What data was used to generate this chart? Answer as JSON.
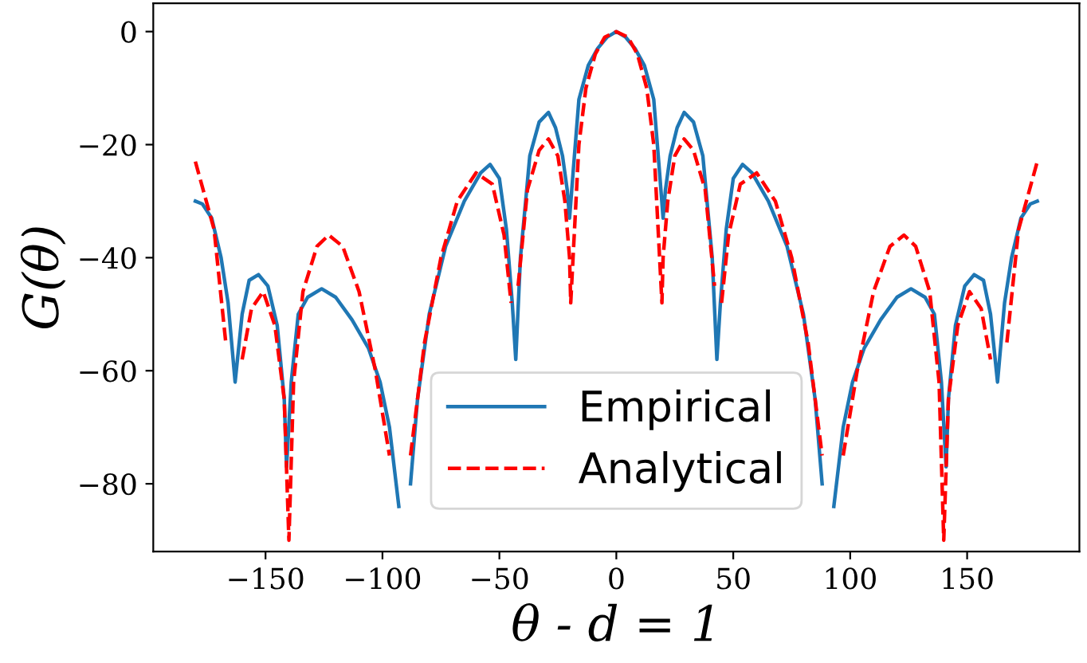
{
  "chart_data": {
    "type": "line",
    "xlabel": "θ - d = 1",
    "ylabel": "G(θ)",
    "xlim": [
      -198,
      198
    ],
    "ylim": [
      -92,
      5
    ],
    "xticks": [
      {
        "value": -150,
        "label": "−150"
      },
      {
        "value": -100,
        "label": "−100"
      },
      {
        "value": -50,
        "label": "−50"
      },
      0,
      50,
      100,
      150
    ],
    "yticks": [
      {
        "value": -80,
        "label": "−80"
      },
      {
        "value": -60,
        "label": "−60"
      },
      {
        "value": -40,
        "label": "−40"
      },
      {
        "value": -20,
        "label": "−20"
      },
      0
    ],
    "grid": false,
    "legend": "bottom",
    "series": [
      {
        "name": "Empirical",
        "color": "#1f77b4",
        "line_style": "solid",
        "x": [
          -180,
          -177,
          -173,
          -169,
          -166,
          -163,
          -160,
          -157,
          -153,
          -149,
          -145,
          -142,
          -141,
          -139,
          -136,
          -132,
          -126,
          -120,
          -113,
          -106,
          -101,
          -97,
          -93,
          -91.5,
          -90,
          -88,
          -85,
          -80,
          -73,
          -65,
          -58,
          -54,
          -50,
          -47,
          -44.5,
          -43,
          -41,
          -37,
          -33,
          -29,
          -26,
          -23,
          -21,
          -20,
          -18.5,
          -16,
          -12,
          -8,
          -4,
          0,
          4,
          8,
          12,
          16,
          18.5,
          20,
          21,
          23,
          26,
          29,
          33,
          37,
          41,
          43,
          44.5,
          47,
          50,
          54,
          58,
          65,
          73,
          80,
          85,
          88,
          90,
          91.5,
          93,
          97,
          101,
          106,
          113,
          120,
          126,
          132,
          136,
          139,
          141,
          142,
          145,
          149,
          153,
          157,
          160,
          163,
          166,
          169,
          173,
          177,
          180
        ],
        "values": [
          -30,
          -30.5,
          -33,
          -40,
          -48,
          -62,
          -50,
          -44,
          -43,
          -45,
          -52,
          -65,
          -77,
          -62,
          -50,
          -47,
          -45.5,
          -47,
          -51,
          -56,
          -62,
          -70,
          -84,
          null,
          null,
          -80,
          -65,
          -50,
          -38,
          -30,
          -25,
          -23.5,
          -26,
          -35,
          -48,
          -58,
          -40,
          -22,
          -16,
          -14.3,
          -17,
          -22,
          -28,
          -33,
          -25,
          -12,
          -6,
          -3,
          -1,
          0,
          -1,
          -3,
          -6,
          -12,
          -25,
          -33,
          -28,
          -22,
          -17,
          -14.3,
          -16,
          -22,
          -40,
          -58,
          -48,
          -35,
          -26,
          -23.5,
          -25,
          -30,
          -38,
          -50,
          -65,
          -80,
          null,
          null,
          -84,
          -70,
          -62,
          -56,
          -51,
          -47,
          -45.5,
          -47,
          -50,
          -62,
          -77,
          -65,
          -52,
          -45,
          -43,
          -44,
          -50,
          -62,
          -48,
          -40,
          -33,
          -30.5,
          -30
        ]
      },
      {
        "name": "Analytical",
        "color": "#ff0000",
        "line_style": "dashed",
        "x": [
          -180,
          -172,
          -167,
          -165,
          -163,
          -160,
          -156,
          -151,
          -146,
          -142,
          -140,
          -138,
          -134,
          -128,
          -123,
          -117,
          -110,
          -103,
          -97,
          -94,
          -92,
          -88,
          -82,
          -75,
          -68,
          -60,
          -53,
          -48,
          -45,
          -43.5,
          -42,
          -38,
          -33,
          -29,
          -25,
          -22,
          -20,
          -19.5,
          -18.5,
          -16,
          -13,
          -9,
          -5,
          0,
          5,
          9,
          13,
          16,
          18.5,
          19.5,
          20,
          22,
          25,
          29,
          33,
          38,
          42,
          43.5,
          45,
          48,
          53,
          60,
          68,
          75,
          82,
          88,
          92,
          94,
          97,
          103,
          110,
          117,
          123,
          128,
          134,
          138,
          140,
          142,
          146,
          151,
          156,
          160,
          163,
          165,
          167,
          172,
          180
        ],
        "values": [
          -23,
          -35,
          -55,
          null,
          null,
          -58,
          -49,
          -46,
          -52,
          -65,
          -90,
          -62,
          -46,
          -38,
          -36,
          -38,
          -46,
          -60,
          -75,
          null,
          null,
          -75,
          -55,
          -40,
          -30,
          -25,
          -27,
          -36,
          -48,
          null,
          -45,
          -28,
          -21,
          -19,
          -22,
          -30,
          -40,
          -48,
          -40,
          -20,
          -10,
          -4,
          -1,
          0,
          -1,
          -4,
          -10,
          -20,
          -40,
          -48,
          -40,
          -30,
          -22,
          -19,
          -21,
          -28,
          -45,
          null,
          -48,
          -36,
          -27,
          -25,
          -30,
          -40,
          -55,
          -75,
          null,
          null,
          -75,
          -60,
          -46,
          -38,
          -36,
          -38,
          -46,
          -62,
          -90,
          -65,
          -52,
          -46,
          -49,
          -58,
          null,
          null,
          -55,
          -35,
          -23
        ]
      }
    ]
  }
}
